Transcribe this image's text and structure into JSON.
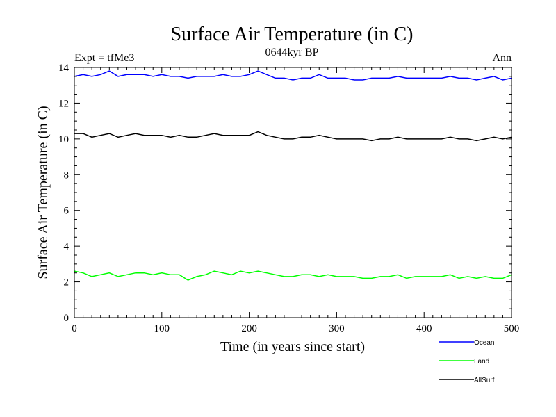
{
  "chart_data": {
    "type": "line",
    "title": "Surface Air Temperature (in C)",
    "subtitle_left": "Expt = tfMe3",
    "subtitle_center": "0644kyr BP",
    "subtitle_right": "Ann",
    "xlabel": "Time (in years since start)",
    "ylabel": "Surface Air Temperature (in C)",
    "xlim": [
      0,
      500
    ],
    "ylim": [
      0,
      14
    ],
    "xticks": [
      0,
      100,
      200,
      300,
      400,
      500
    ],
    "yticks": [
      0,
      2,
      4,
      6,
      8,
      10,
      12,
      14
    ],
    "grid": false,
    "legend_position": "bottom-right, below plot",
    "series": [
      {
        "name": "Ocean",
        "color": "#0000ff",
        "x": [
          0,
          10,
          20,
          30,
          40,
          50,
          60,
          70,
          80,
          90,
          100,
          110,
          120,
          130,
          140,
          150,
          160,
          170,
          180,
          190,
          200,
          210,
          220,
          230,
          240,
          250,
          260,
          270,
          280,
          290,
          300,
          310,
          320,
          330,
          340,
          350,
          360,
          370,
          380,
          390,
          400,
          410,
          420,
          430,
          440,
          450,
          460,
          470,
          480,
          490,
          500
        ],
        "values": [
          13.5,
          13.6,
          13.5,
          13.6,
          13.8,
          13.5,
          13.6,
          13.6,
          13.6,
          13.5,
          13.6,
          13.5,
          13.5,
          13.4,
          13.5,
          13.5,
          13.5,
          13.6,
          13.5,
          13.5,
          13.6,
          13.8,
          13.6,
          13.4,
          13.4,
          13.3,
          13.4,
          13.4,
          13.6,
          13.4,
          13.4,
          13.4,
          13.3,
          13.3,
          13.4,
          13.4,
          13.4,
          13.5,
          13.4,
          13.4,
          13.4,
          13.4,
          13.4,
          13.5,
          13.4,
          13.4,
          13.3,
          13.4,
          13.5,
          13.3,
          13.4
        ]
      },
      {
        "name": "Land",
        "color": "#00ff00",
        "x": [
          0,
          10,
          20,
          30,
          40,
          50,
          60,
          70,
          80,
          90,
          100,
          110,
          120,
          130,
          140,
          150,
          160,
          170,
          180,
          190,
          200,
          210,
          220,
          230,
          240,
          250,
          260,
          270,
          280,
          290,
          300,
          310,
          320,
          330,
          340,
          350,
          360,
          370,
          380,
          390,
          400,
          410,
          420,
          430,
          440,
          450,
          460,
          470,
          480,
          490,
          500
        ],
        "values": [
          2.6,
          2.5,
          2.3,
          2.4,
          2.5,
          2.3,
          2.4,
          2.5,
          2.5,
          2.4,
          2.5,
          2.4,
          2.4,
          2.1,
          2.3,
          2.4,
          2.6,
          2.5,
          2.4,
          2.6,
          2.5,
          2.6,
          2.5,
          2.4,
          2.3,
          2.3,
          2.4,
          2.4,
          2.3,
          2.4,
          2.3,
          2.3,
          2.3,
          2.2,
          2.2,
          2.3,
          2.3,
          2.4,
          2.2,
          2.3,
          2.3,
          2.3,
          2.3,
          2.4,
          2.2,
          2.3,
          2.2,
          2.3,
          2.2,
          2.2,
          2.4
        ]
      },
      {
        "name": "AllSurf",
        "color": "#000000",
        "x": [
          0,
          10,
          20,
          30,
          40,
          50,
          60,
          70,
          80,
          90,
          100,
          110,
          120,
          130,
          140,
          150,
          160,
          170,
          180,
          190,
          200,
          210,
          220,
          230,
          240,
          250,
          260,
          270,
          280,
          290,
          300,
          310,
          320,
          330,
          340,
          350,
          360,
          370,
          380,
          390,
          400,
          410,
          420,
          430,
          440,
          450,
          460,
          470,
          480,
          490,
          500
        ],
        "values": [
          10.3,
          10.3,
          10.1,
          10.2,
          10.3,
          10.1,
          10.2,
          10.3,
          10.2,
          10.2,
          10.2,
          10.1,
          10.2,
          10.1,
          10.1,
          10.2,
          10.3,
          10.2,
          10.2,
          10.2,
          10.2,
          10.4,
          10.2,
          10.1,
          10.0,
          10.0,
          10.1,
          10.1,
          10.2,
          10.1,
          10.0,
          10.0,
          10.0,
          10.0,
          9.9,
          10.0,
          10.0,
          10.1,
          10.0,
          10.0,
          10.0,
          10.0,
          10.0,
          10.1,
          10.0,
          10.0,
          9.9,
          10.0,
          10.1,
          10.0,
          10.1
        ]
      }
    ]
  }
}
